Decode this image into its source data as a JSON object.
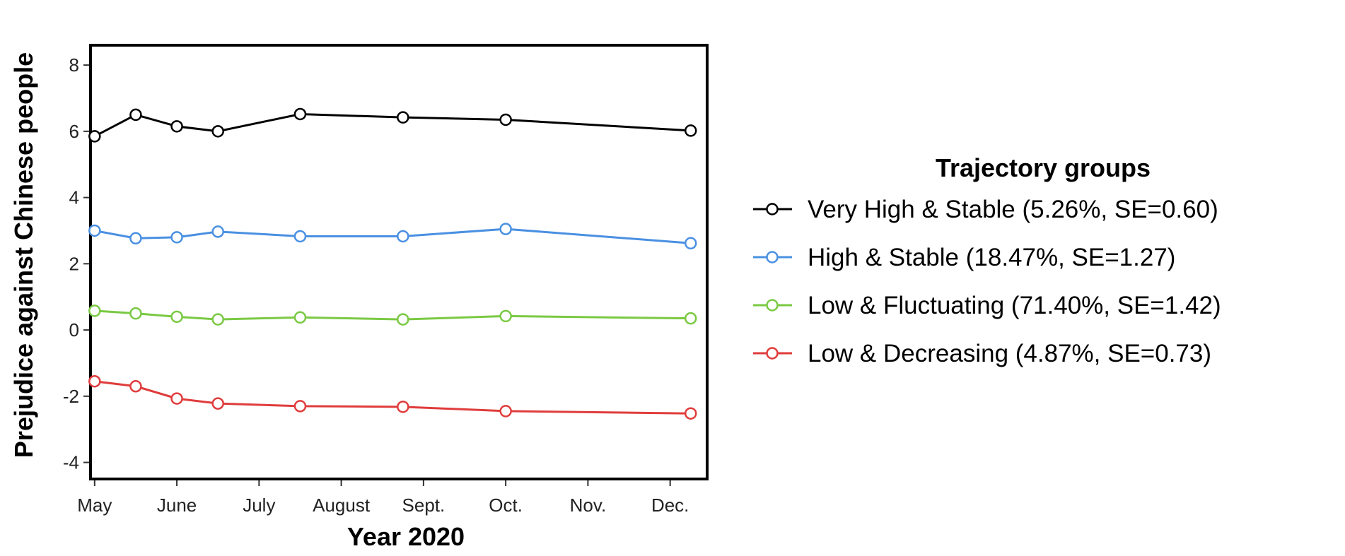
{
  "chart_data": {
    "type": "line",
    "xlabel": "Year 2020",
    "ylabel": "Prejudice against Chinese people",
    "ylim": [
      -4.5,
      8.6
    ],
    "yticks": [
      -4,
      -2,
      0,
      2,
      4,
      6,
      8
    ],
    "xlim": [
      -0.05,
      7.45
    ],
    "xticks": [
      {
        "label": "May",
        "pos": 0
      },
      {
        "label": "June",
        "pos": 1
      },
      {
        "label": "July",
        "pos": 2
      },
      {
        "label": "August",
        "pos": 3
      },
      {
        "label": "Sept.",
        "pos": 4
      },
      {
        "label": "Oct.",
        "pos": 5
      },
      {
        "label": "Nov.",
        "pos": 6
      },
      {
        "label": "Dec.",
        "pos": 7
      }
    ],
    "x": [
      0,
      0.5,
      1,
      1.5,
      2.5,
      3.75,
      5,
      7.25
    ],
    "legend_title": "Trajectory groups",
    "legend_position": "right",
    "grid": false,
    "series": [
      {
        "name": "Very High & Stable (5.26%, SE=0.60)",
        "color": "#000000",
        "values": [
          5.85,
          6.5,
          6.15,
          6.0,
          6.52,
          6.42,
          6.35,
          6.02
        ]
      },
      {
        "name": "High & Stable (18.47%, SE=1.27)",
        "color": "#4a90e2",
        "values": [
          3.0,
          2.77,
          2.8,
          2.97,
          2.83,
          2.83,
          3.05,
          2.62
        ]
      },
      {
        "name": "Low & Fluctuating (71.40%, SE=1.42)",
        "color": "#7ac943",
        "values": [
          0.58,
          0.5,
          0.4,
          0.32,
          0.38,
          0.32,
          0.42,
          0.35
        ]
      },
      {
        "name": "Low & Decreasing (4.87%, SE=0.73)",
        "color": "#e03c3c",
        "values": [
          -1.55,
          -1.7,
          -2.07,
          -2.22,
          -2.3,
          -2.32,
          -2.45,
          -2.52
        ]
      }
    ]
  }
}
